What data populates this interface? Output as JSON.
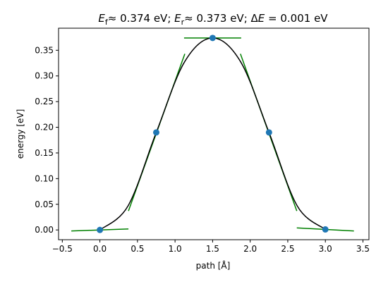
{
  "chart_data": {
    "type": "line",
    "title_parts": {
      "ef_symbol": "E",
      "ef_sub": "f",
      "ef_value": "≈ 0.374 eV; ",
      "er_symbol": "E",
      "er_sub": "r",
      "er_value": "≈ 0.373 eV; Δ",
      "de_symbol": "E",
      "de_value": " = 0.001 eV"
    },
    "xlabel": "path [Å]",
    "ylabel": "energy [eV]",
    "xlim": [
      -0.55,
      3.58
    ],
    "ylim": [
      -0.019,
      0.393
    ],
    "xticks": [
      -0.5,
      0.0,
      0.5,
      1.0,
      1.5,
      2.0,
      2.5,
      3.0,
      3.5
    ],
    "xtick_labels": [
      "−0.5",
      "0.0",
      "0.5",
      "1.0",
      "1.5",
      "2.0",
      "2.5",
      "3.0",
      "3.5"
    ],
    "yticks": [
      0.0,
      0.05,
      0.1,
      0.15,
      0.2,
      0.25,
      0.3,
      0.35
    ],
    "ytick_labels": [
      "0.00",
      "0.05",
      "0.10",
      "0.15",
      "0.20",
      "0.25",
      "0.30",
      "0.35"
    ],
    "points": {
      "x": [
        0.0,
        0.75,
        1.5,
        2.25,
        3.0
      ],
      "y": [
        0.0,
        0.19,
        0.374,
        0.19,
        0.001
      ],
      "color": "#1f77b4"
    },
    "curve": {
      "color": "#000000",
      "x": [
        0.0,
        0.375,
        0.75,
        1.125,
        1.5,
        1.875,
        2.25,
        2.625,
        3.0
      ],
      "y": [
        0.0,
        0.047,
        0.19,
        0.327,
        0.374,
        0.327,
        0.19,
        0.047,
        0.001
      ]
    },
    "tangents": {
      "color": "#008000",
      "segments": [
        {
          "x": [
            -0.38,
            0.38
          ],
          "y": [
            -0.002,
            0.002
          ]
        },
        {
          "x": [
            0.38,
            1.13
          ],
          "y": [
            0.037,
            0.343
          ]
        },
        {
          "x": [
            1.12,
            1.88
          ],
          "y": [
            0.374,
            0.374
          ]
        },
        {
          "x": [
            1.87,
            2.62
          ],
          "y": [
            0.343,
            0.037
          ]
        },
        {
          "x": [
            2.62,
            3.38
          ],
          "y": [
            0.004,
            -0.002
          ]
        }
      ]
    }
  }
}
